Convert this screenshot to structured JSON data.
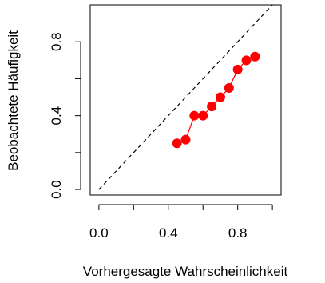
{
  "chart_data": {
    "type": "scatter",
    "title": "",
    "xlabel": "Vorhergesagte Wahrscheinlichkeit",
    "ylabel": "Beobachtete Häufigkeit",
    "xlim": [
      -0.05,
      1.05
    ],
    "ylim": [
      -0.03,
      1.0
    ],
    "x_ticks": [
      0.0,
      0.4,
      0.8
    ],
    "x_tick_labels": [
      "0.0",
      "0.4",
      "0.8"
    ],
    "y_ticks": [
      0.0,
      0.4,
      0.8
    ],
    "y_tick_labels": [
      "0.0",
      "0.4",
      "0.8"
    ],
    "grid": false,
    "reference_line": {
      "from": [
        0,
        0
      ],
      "to": [
        1,
        1
      ],
      "style": "dashed",
      "color": "#000000"
    },
    "series": [
      {
        "color": "#ff0000",
        "marker": "filled-circle",
        "connected": true,
        "x": [
          0.45,
          0.5,
          0.55,
          0.6,
          0.65,
          0.7,
          0.75,
          0.8,
          0.85,
          0.9
        ],
        "y": [
          0.25,
          0.27,
          0.4,
          0.4,
          0.45,
          0.5,
          0.55,
          0.65,
          0.7,
          0.72
        ]
      }
    ]
  }
}
